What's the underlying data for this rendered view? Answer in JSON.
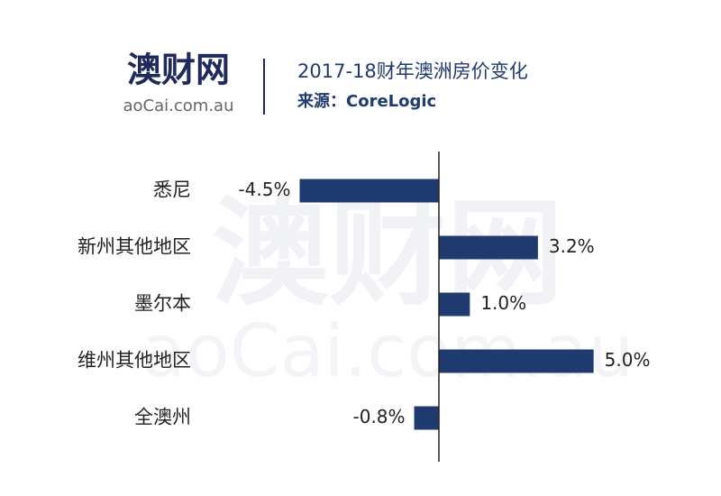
{
  "logo": {
    "name": "澳财网",
    "domain": "aoCai.com.au"
  },
  "chart_data": {
    "type": "bar",
    "orientation": "horizontal",
    "title": "2017-18财年澳洲房价变化",
    "subtitle": "来源：CoreLogic",
    "categories": [
      "悉尼",
      "新州其他地区",
      "墨尔本",
      "维州其他地区",
      "全澳州"
    ],
    "values": [
      -4.5,
      3.2,
      1.0,
      5.0,
      -0.8
    ],
    "value_labels": [
      "-4.5%",
      "3.2%",
      "1.0%",
      "5.0%",
      "-0.8%"
    ],
    "color": "#1f3a6e",
    "xlim": [
      -6,
      6
    ]
  }
}
